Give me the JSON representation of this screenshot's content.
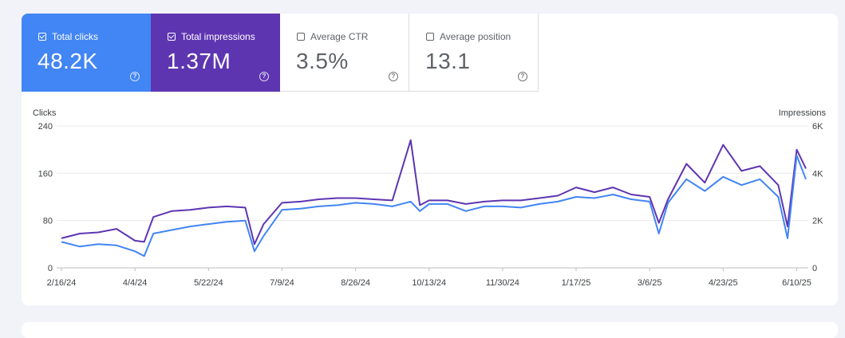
{
  "metrics": [
    {
      "label": "Total clicks",
      "value": "48.2K",
      "checked": true,
      "color": "#4285f4"
    },
    {
      "label": "Total impressions",
      "value": "1.37M",
      "checked": true,
      "color": "#5e35b1"
    },
    {
      "label": "Average CTR",
      "value": "3.5%",
      "checked": false
    },
    {
      "label": "Average position",
      "value": "13.1",
      "checked": false
    }
  ],
  "help_glyph": "?",
  "chart_data": {
    "type": "line",
    "ylabel_left": "Clicks",
    "ylabel_right": "Impressions",
    "y_left_ticks": [
      "240",
      "160",
      "80",
      "0"
    ],
    "y_right_ticks": [
      "6K",
      "4K",
      "2K",
      "0"
    ],
    "ylim_left": [
      0,
      240
    ],
    "ylim_right": [
      0,
      6000
    ],
    "x_tick_labels": [
      "2/16/24",
      "4/4/24",
      "5/22/24",
      "7/9/24",
      "8/26/24",
      "10/13/24",
      "11/30/24",
      "1/17/25",
      "3/6/25",
      "4/23/25",
      "6/10/25"
    ],
    "x_start": "2/16/24",
    "x_end": "6/16/25",
    "grid": true,
    "series": [
      {
        "name": "Clicks",
        "axis": "left",
        "color": "#4285f4",
        "x": [
          "2/16/24",
          "2/28/24",
          "3/11/24",
          "3/23/24",
          "4/4/24",
          "4/10/24",
          "4/16/24",
          "4/28/24",
          "5/10/24",
          "5/22/24",
          "6/3/24",
          "6/15/24",
          "6/21/24",
          "6/27/24",
          "7/9/24",
          "7/21/24",
          "8/2/24",
          "8/14/24",
          "8/26/24",
          "9/7/24",
          "9/19/24",
          "10/1/24",
          "10/7/24",
          "10/13/24",
          "10/25/24",
          "11/6/24",
          "11/18/24",
          "11/30/24",
          "12/12/24",
          "12/24/24",
          "1/5/25",
          "1/17/25",
          "1/29/25",
          "2/10/25",
          "2/22/25",
          "3/6/25",
          "3/12/25",
          "3/18/25",
          "3/30/25",
          "4/11/25",
          "4/23/25",
          "5/5/25",
          "5/17/25",
          "5/29/25",
          "6/4/25",
          "6/10/25",
          "6/16/25"
        ],
        "y": [
          44,
          36,
          40,
          38,
          28,
          20,
          58,
          64,
          70,
          74,
          78,
          80,
          28,
          54,
          98,
          100,
          104,
          106,
          110,
          108,
          104,
          112,
          96,
          108,
          108,
          96,
          104,
          104,
          102,
          108,
          112,
          120,
          118,
          124,
          116,
          112,
          58,
          110,
          150,
          130,
          154,
          140,
          150,
          120,
          50,
          190,
          150
        ]
      },
      {
        "name": "Impressions",
        "axis": "right",
        "color": "#5e35b1",
        "x": [
          "2/16/24",
          "2/28/24",
          "3/11/24",
          "3/23/24",
          "4/4/24",
          "4/10/24",
          "4/16/24",
          "4/28/24",
          "5/10/24",
          "5/22/24",
          "6/3/24",
          "6/15/24",
          "6/21/24",
          "6/27/24",
          "7/9/24",
          "7/21/24",
          "8/2/24",
          "8/14/24",
          "8/26/24",
          "9/7/24",
          "9/19/24",
          "10/1/24",
          "10/7/24",
          "10/13/24",
          "10/25/24",
          "11/6/24",
          "11/18/24",
          "11/30/24",
          "12/12/24",
          "12/24/24",
          "1/5/25",
          "1/17/25",
          "1/29/25",
          "2/10/25",
          "2/22/25",
          "3/6/25",
          "3/12/25",
          "3/18/25",
          "3/30/25",
          "4/11/25",
          "4/23/25",
          "5/5/25",
          "5/17/25",
          "5/29/25",
          "6/4/25",
          "6/10/25",
          "6/16/25"
        ],
        "y": [
          1250,
          1450,
          1500,
          1650,
          1150,
          1100,
          2150,
          2400,
          2450,
          2550,
          2600,
          2550,
          1000,
          1850,
          2750,
          2800,
          2900,
          2950,
          2950,
          2900,
          2850,
          5400,
          2650,
          2850,
          2850,
          2700,
          2800,
          2850,
          2850,
          2950,
          3050,
          3400,
          3200,
          3400,
          3100,
          3000,
          1900,
          2900,
          4400,
          3600,
          5200,
          4100,
          4300,
          3500,
          1750,
          5000,
          4200
        ]
      }
    ]
  }
}
